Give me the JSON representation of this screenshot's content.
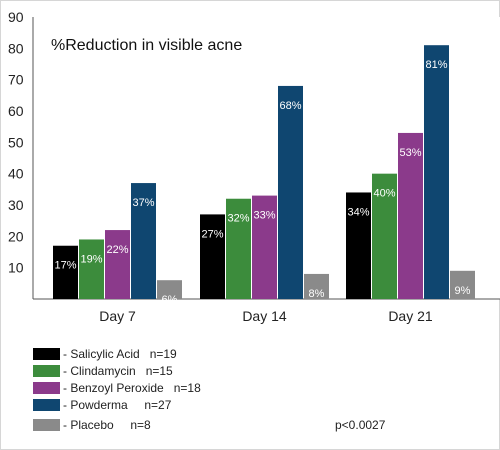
{
  "chart_data": {
    "type": "bar",
    "title": "%Reduction in visible acne",
    "categories": [
      "Day 7",
      "Day 14",
      "Day 21"
    ],
    "ylim": [
      0,
      90
    ],
    "yticks": [
      10,
      20,
      30,
      40,
      50,
      60,
      70,
      80,
      90
    ],
    "grid": false,
    "legend_position": "bottom-left",
    "series": [
      {
        "name": "Salicylic Acid",
        "n": "n=19",
        "legend_label": "- Salicylic Acid   n=19",
        "color": "#000000",
        "values": [
          17,
          27,
          34
        ],
        "labels": [
          "17%",
          "27%",
          "34%"
        ]
      },
      {
        "name": "Clindamycin",
        "n": "n=15",
        "legend_label": "- Clindamycin   n=15",
        "color": "#3c8c3c",
        "values": [
          19,
          32,
          40
        ],
        "labels": [
          "19%",
          "32%",
          "40%"
        ]
      },
      {
        "name": "Benzoyl Peroxide",
        "n": "n=18",
        "legend_label": "- Benzoyl Peroxide   n=18",
        "color": "#8b3a8b",
        "values": [
          22,
          33,
          53
        ],
        "labels": [
          "22%",
          "33%",
          "53%"
        ]
      },
      {
        "name": "Powderma",
        "n": "n=27",
        "legend_label": "- Powderma     n=27",
        "color": "#0f4670",
        "values": [
          37,
          68,
          81
        ],
        "labels": [
          "37%",
          "68%",
          "81%"
        ]
      },
      {
        "name": "Placebo",
        "n": "n=8",
        "legend_label": "- Placebo     n=8",
        "color": "#8a8a8a",
        "values": [
          6,
          8,
          9
        ],
        "labels": [
          "6%",
          "8%",
          "9%"
        ]
      }
    ],
    "annotation": "p<0.0027"
  }
}
